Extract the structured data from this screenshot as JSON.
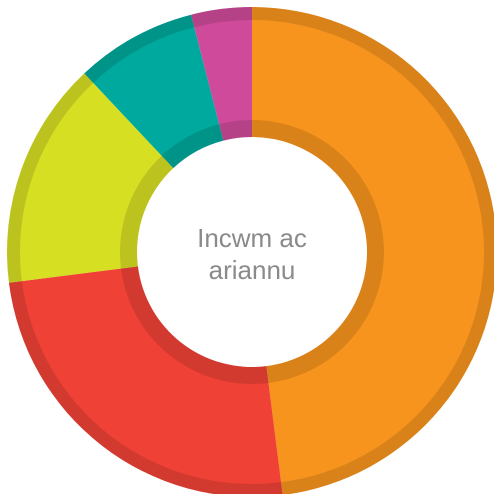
{
  "chart_data": {
    "type": "donut",
    "title": "Incwm ac ariannu",
    "values": [
      48,
      25,
      15,
      8,
      4
    ],
    "colors": [
      "#f7941d",
      "#ef4136",
      "#d7df23",
      "#00a99d",
      "#cf4a9a"
    ]
  }
}
